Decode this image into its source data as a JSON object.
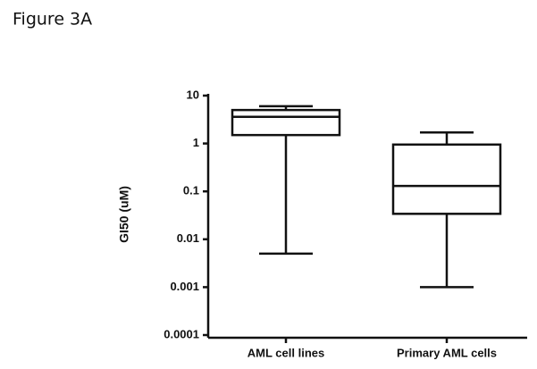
{
  "chart_data": {
    "type": "box",
    "title": "Figure 3A",
    "y_label": "GI50 (uM)",
    "categories": [
      "AML cell lines",
      "Primary AML cells"
    ],
    "min": [
      0.005,
      0.001
    ],
    "q1": [
      1.5,
      0.034
    ],
    "median": [
      3.6,
      0.13
    ],
    "q3": [
      5,
      0.95
    ],
    "max": [
      6,
      1.7
    ],
    "color": "#111111",
    "log_y": true,
    "ylim": [
      0.0001,
      10
    ],
    "yticks": [
      0.0001,
      0.001,
      0.01,
      0.1,
      1,
      10
    ]
  }
}
